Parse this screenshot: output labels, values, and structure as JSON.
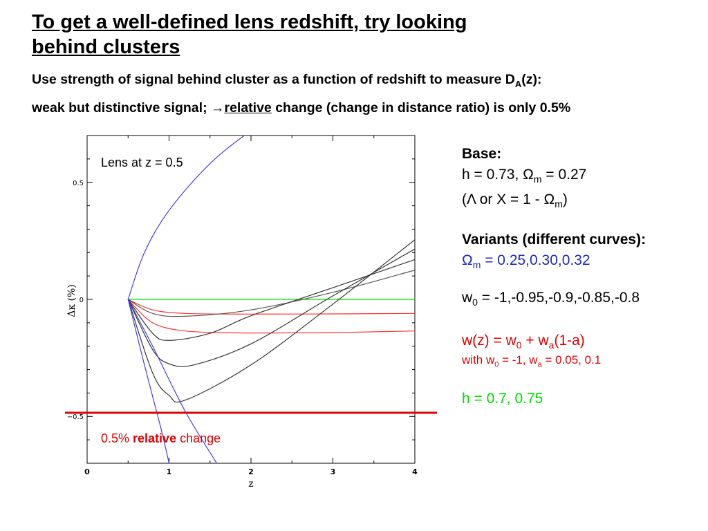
{
  "title": {
    "line1": "To get a well-defined lens redshift, try looking",
    "line2": "behind clusters"
  },
  "subtitle": {
    "line1_pre": "Use strength of signal behind cluster as a function of redshift to measure D",
    "line1_sub": "A",
    "line1_post": "(z):",
    "line2_pre": "weak but distinctive signal; ",
    "line2_glyph": "→",
    "line2_underlined": "relative",
    "line2_post": " change (change in distance ratio) is only 0.5%"
  },
  "plot": {
    "annotation": "Lens at z = 0.5",
    "ylabel": "Δκ  (%)",
    "xlabel": "z",
    "yticks": [
      "0.5",
      "0",
      "−0.5"
    ],
    "xticks": [
      "0",
      "1",
      "2",
      "3",
      "4"
    ],
    "threshold_prefix": "0.5% ",
    "threshold_bold": "relative",
    "threshold_suffix": " change"
  },
  "chart_data": {
    "type": "line",
    "xlabel": "z",
    "ylabel": "Δκ (%)",
    "xlim": [
      0,
      4
    ],
    "ylim": [
      -0.7,
      0.7
    ],
    "lens_z": 0.5,
    "threshold_line_y": -0.49,
    "series": [
      {
        "color": "#00dd00",
        "x": [
          0.5,
          4.0
        ],
        "y": [
          0.0,
          0.0
        ]
      },
      {
        "color": "#ff3333",
        "x": [
          0.5,
          0.8,
          1.2,
          2.0,
          3.0,
          4.0
        ],
        "y": [
          0.0,
          -0.045,
          -0.06,
          -0.063,
          -0.062,
          -0.06
        ]
      },
      {
        "color": "#ff3333",
        "x": [
          0.5,
          0.8,
          1.2,
          1.8,
          2.5,
          3.0,
          4.0
        ],
        "y": [
          0.0,
          -0.1,
          -0.135,
          -0.143,
          -0.143,
          -0.142,
          -0.135
        ]
      },
      {
        "color": "#555555",
        "x": [
          0.5,
          0.8,
          1.2,
          2.0,
          3.0,
          4.0
        ],
        "y": [
          0.0,
          -0.06,
          -0.072,
          -0.045,
          0.03,
          0.125
        ]
      },
      {
        "color": "#333333",
        "x": [
          0.5,
          0.8,
          1.0,
          1.5,
          2.0,
          3.0,
          4.0
        ],
        "y": [
          0.0,
          -0.145,
          -0.175,
          -0.145,
          -0.07,
          0.05,
          0.17
        ]
      },
      {
        "color": "#333333",
        "x": [
          0.5,
          0.8,
          1.0,
          1.3,
          2.0,
          3.0,
          4.0
        ],
        "y": [
          0.0,
          -0.215,
          -0.275,
          -0.28,
          -0.19,
          0.015,
          0.215
        ]
      },
      {
        "color": "#333333",
        "x": [
          0.5,
          0.8,
          1.0,
          1.2,
          2.0,
          3.0,
          4.0
        ],
        "y": [
          0.0,
          -0.315,
          -0.41,
          -0.43,
          -0.28,
          -0.02,
          0.255
        ]
      },
      {
        "color": "#4040e0",
        "x": [
          0.5,
          0.7,
          1.0,
          1.5,
          2.0,
          2.4
        ],
        "y": [
          0.0,
          0.2,
          0.38,
          0.58,
          0.72,
          0.8
        ]
      },
      {
        "color": "#4040e0",
        "x": [
          0.5,
          0.7,
          0.9,
          1.0
        ],
        "y": [
          0.0,
          -0.28,
          -0.55,
          -0.7
        ]
      },
      {
        "color": "#4040e0",
        "x": [
          0.5,
          0.8,
          1.2,
          1.6
        ],
        "y": [
          0.0,
          -0.2,
          -0.48,
          -0.71
        ]
      }
    ]
  },
  "right_panel": {
    "base_title": "Base:",
    "base_line1_pre": " h = 0.73, ",
    "omega": "Ω",
    "sub_m": "m",
    "base_line1_post": " = 0.27",
    "base_line2_pre": "(",
    "lambda": "Λ",
    "base_line2_mid": " or X = 1 - ",
    "base_line2_post": ")",
    "variants_title": "Variants (different curves):",
    "variant_omega_post": " = 0.25,0.30,0.32",
    "w0_pre": "w",
    "w0_sub": "0",
    "w0_post": " = -1,-0.95,-0.9,-0.85,-0.8",
    "wz_pre": "w(z) = w",
    "wz_sub0": "0",
    "wz_mid": " + w",
    "wz_suba": "a",
    "wz_post": "(1-a)",
    "with_pre": "with w",
    "with_sub0": "0",
    "with_mid": " = -1, w",
    "with_suba": "a",
    "with_post": " = 0.05, 0.1",
    "h_line": "h = 0.7, 0.75"
  },
  "colors": {
    "blue_text": "#1f2ab8",
    "red": "#e00000",
    "green": "#00dd00",
    "threshold_line": "#e00000"
  }
}
